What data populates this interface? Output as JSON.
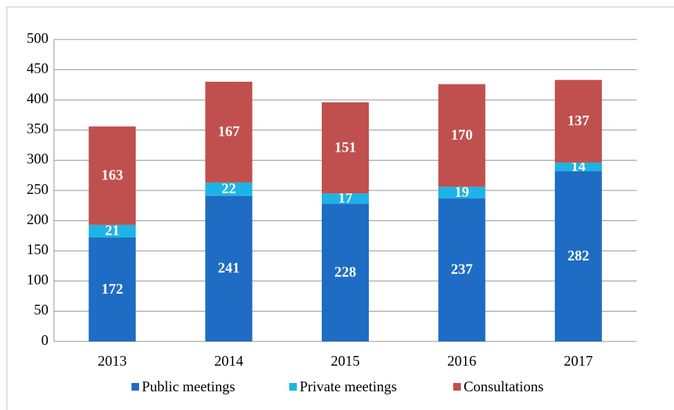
{
  "chart_data": {
    "type": "stacked_bar",
    "categories": [
      "2013",
      "2014",
      "2015",
      "2016",
      "2017"
    ],
    "series": [
      {
        "name": "Public meetings",
        "color": "#1f6cc4",
        "values": [
          172,
          241,
          228,
          237,
          282
        ]
      },
      {
        "name": "Private meetings",
        "color": "#1cb4e6",
        "values": [
          21,
          22,
          17,
          19,
          14
        ]
      },
      {
        "name": "Consultations",
        "color": "#c0504d",
        "values": [
          163,
          167,
          151,
          170,
          137
        ]
      }
    ],
    "ylim": [
      0,
      500
    ],
    "yticks": [
      0,
      50,
      100,
      150,
      200,
      250,
      300,
      350,
      400,
      450,
      500
    ],
    "grid": true,
    "legend": "bottom"
  }
}
